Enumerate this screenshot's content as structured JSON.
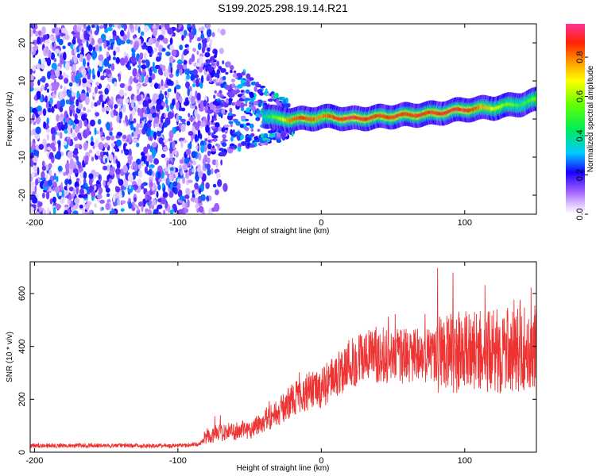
{
  "title": "S199.2025.298.19.14.R21",
  "chart_data": [
    {
      "type": "heatmap",
      "name": "spectrogram",
      "xlabel": "Height of straight line (km)",
      "ylabel": "Frequency (Hz)",
      "xlim": [
        -203,
        150
      ],
      "ylim": [
        -25,
        25
      ],
      "xticks": [
        "-200",
        "-100",
        "0",
        "100"
      ],
      "xtick_values": [
        -200,
        -100,
        0,
        100
      ],
      "yticks": [
        "20",
        "10",
        "0",
        "-10",
        "-20"
      ],
      "ytick_values": [
        20,
        10,
        0,
        -10,
        -20
      ],
      "colorbar": {
        "label": "Normalized spectral amplitude",
        "range": [
          0,
          0.97
        ],
        "ticks": [
          "0.0",
          "0.2",
          "0.4",
          "0.6",
          "0.8"
        ],
        "tick_values": [
          0.0,
          0.2,
          0.4,
          0.6,
          0.8
        ]
      },
      "signal_track": {
        "x": [
          -80,
          -60,
          -40,
          -30,
          -20,
          -10,
          0,
          10,
          20,
          40,
          60,
          80,
          100,
          120,
          140,
          150
        ],
        "freq": [
          3,
          3,
          1,
          0,
          0,
          0,
          0.5,
          0.5,
          0,
          0.5,
          1,
          1.5,
          2.5,
          3,
          4,
          5
        ],
        "amplitude": [
          0.2,
          0.3,
          0.4,
          0.6,
          0.85,
          0.9,
          0.8,
          0.9,
          0.95,
          0.9,
          0.9,
          0.9,
          0.95,
          0.7,
          0.5,
          0.6
        ]
      },
      "noise_floor_region": {
        "x_from": -203,
        "x_to": -75,
        "typical_amplitude": 0.12
      }
    },
    {
      "type": "line",
      "name": "snr",
      "xlabel": "Height of straight line (km)",
      "ylabel": "SNR (10 * v/v)",
      "xlim": [
        -203,
        150
      ],
      "ylim": [
        0,
        720
      ],
      "xticks": [
        "-200",
        "-100",
        "0",
        "100"
      ],
      "xtick_values": [
        -200,
        -100,
        0,
        100
      ],
      "yticks": [
        "0",
        "200",
        "400",
        "600"
      ],
      "ytick_values": [
        0,
        200,
        400,
        600
      ],
      "series": [
        {
          "name": "SNR",
          "color": "#ee3333",
          "x": [
            -203,
            -180,
            -150,
            -120,
            -100,
            -85,
            -80,
            -70,
            -60,
            -50,
            -40,
            -30,
            -20,
            -10,
            0,
            10,
            20,
            30,
            40,
            60,
            80,
            100,
            120,
            140,
            150
          ],
          "values": [
            25,
            25,
            25,
            25,
            25,
            30,
            60,
            75,
            80,
            85,
            120,
            150,
            200,
            230,
            240,
            290,
            340,
            360,
            370,
            360,
            370,
            380,
            380,
            390,
            400
          ]
        }
      ]
    }
  ]
}
